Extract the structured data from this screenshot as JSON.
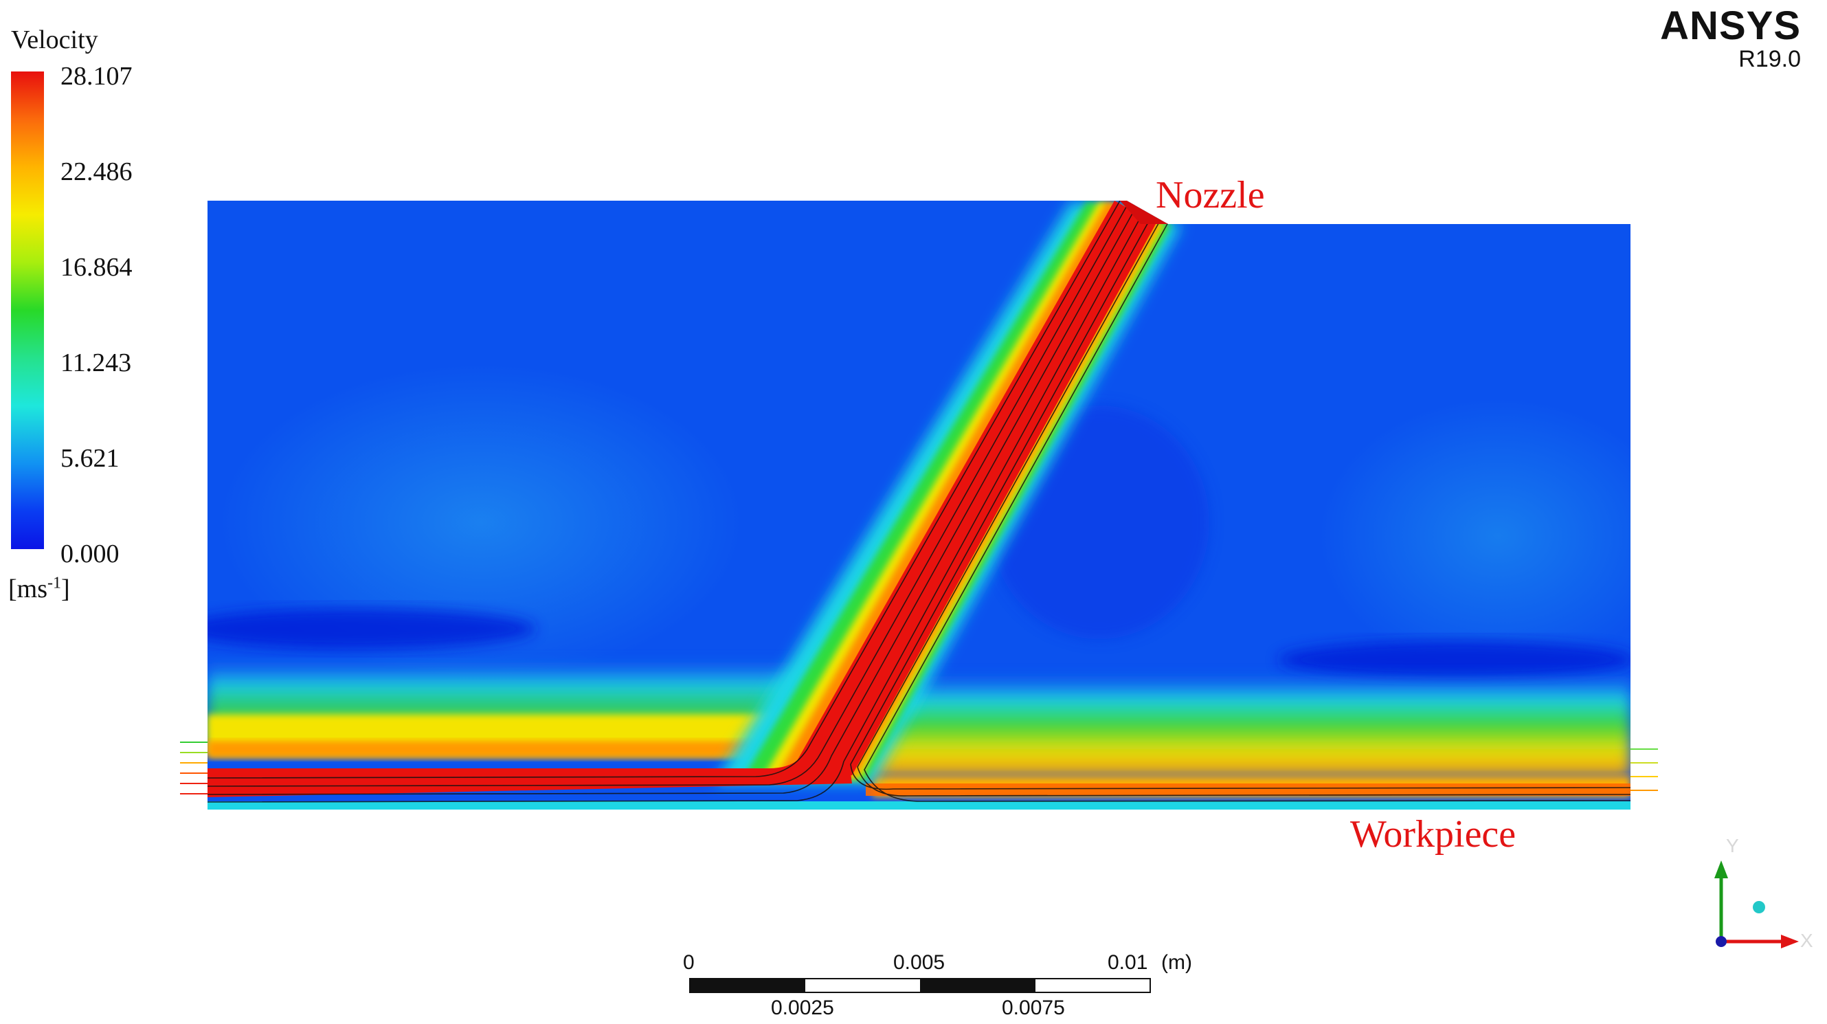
{
  "legend": {
    "title": "Velocity",
    "ticks": [
      "28.107",
      "22.486",
      "16.864",
      "11.243",
      "5.621",
      "0.000"
    ],
    "units_base": "[ms",
    "units_exp": "-1",
    "units_close": "]",
    "colors": [
      "#e8100d",
      "#fb6a0c",
      "#ffb400",
      "#f6ec00",
      "#a8ee0e",
      "#28d928",
      "#25e28c",
      "#1ee7dc",
      "#1193f2",
      "#0a3df2",
      "#0a14e6"
    ]
  },
  "brand": {
    "name": "ANSYS",
    "version": "R19.0"
  },
  "labels": {
    "nozzle": "Nozzle",
    "workpiece": "Workpiece"
  },
  "scale_bar": {
    "top_labels": [
      "0",
      "0.005",
      "0.01"
    ],
    "unit": "(m)",
    "bottom_labels": [
      "0.0025",
      "0.0075"
    ]
  },
  "axes": {
    "x": "X",
    "y": "Y"
  }
}
